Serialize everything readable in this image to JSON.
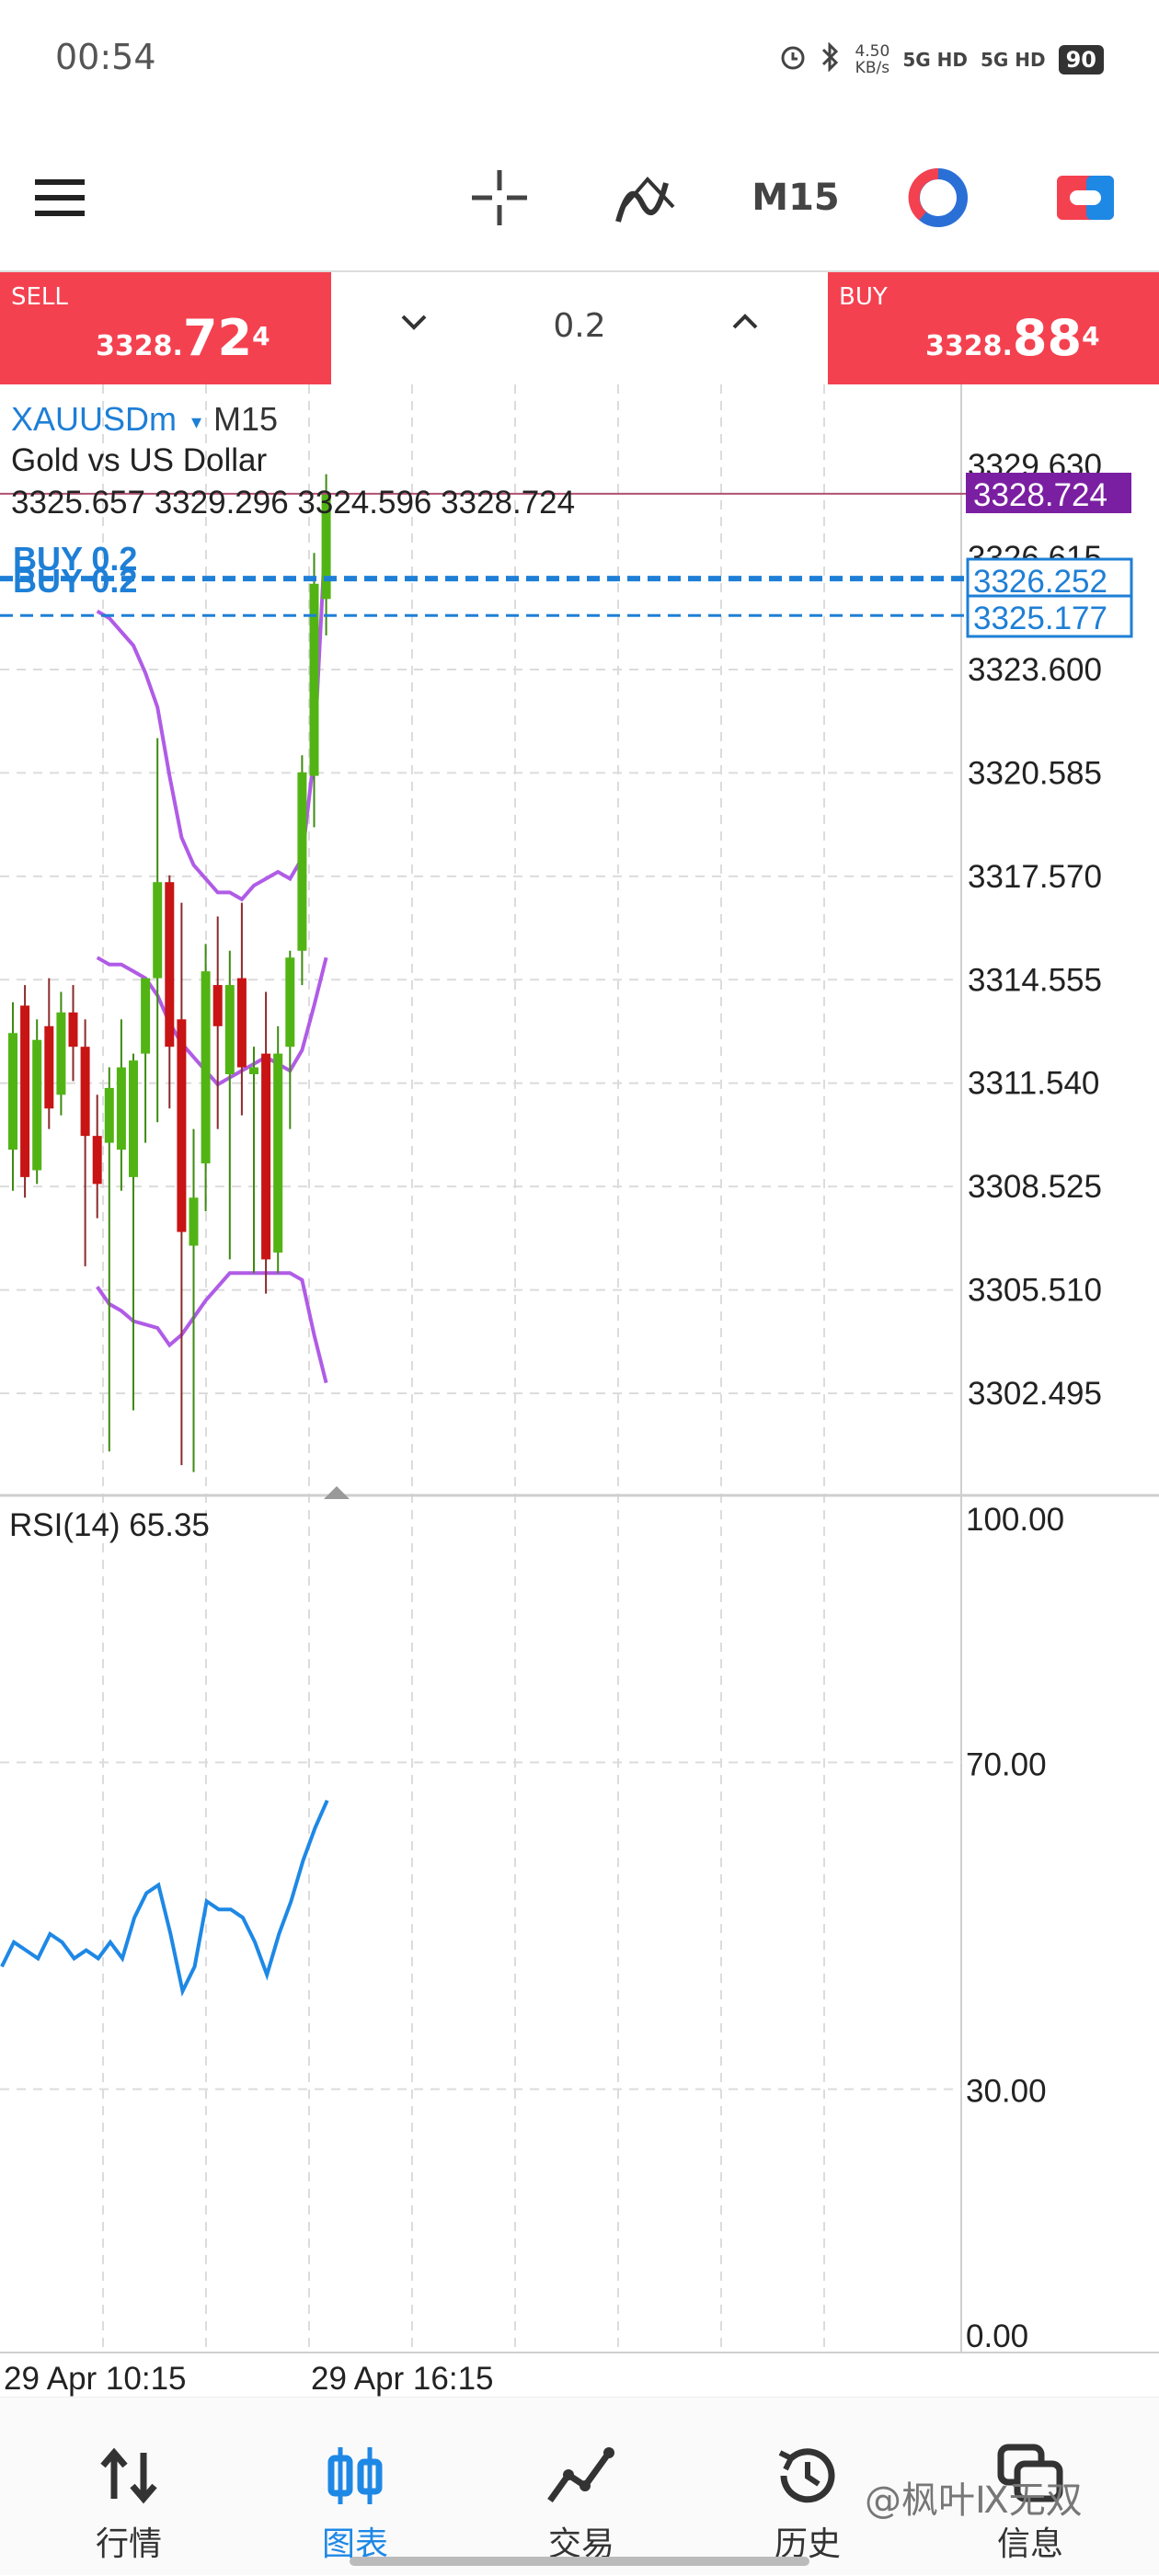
{
  "status_bar": {
    "time": "00:54",
    "net_speed_value": "4.50",
    "net_speed_unit": "KB/s",
    "signal_1": "5G HD",
    "signal_2": "5G HD",
    "battery": "90"
  },
  "toolbar": {
    "timeframe": "M15",
    "icons": [
      "menu-icon",
      "crosshair-icon",
      "indicators-icon",
      "timeframe",
      "color-theme-icon",
      "trade-toggle-icon"
    ]
  },
  "trade_bar": {
    "sell_label": "SELL",
    "sell_price_main": "3328.",
    "sell_price_big": "72",
    "sell_price_sup": "4",
    "buy_label": "BUY",
    "buy_price_main": "3328.",
    "buy_price_big": "88",
    "buy_price_sup": "4",
    "volume": "0.2",
    "colors": {
      "trade_button": "#f44150"
    }
  },
  "chart_header": {
    "symbol": "XAUUSDm",
    "dropdown_glyph": "▾",
    "timeframe": "M15",
    "description": "Gold vs US Dollar",
    "ohlc": "3325.657 3329.296 3324.596 3328.724"
  },
  "orders": {
    "label_1": "BUY 0.2",
    "label_2": "BUY 0.2",
    "price_1": "3326.252",
    "price_2": "3325.177",
    "current_price": "3328.724",
    "partial_top_label": "3329.630",
    "partial_hidden_label": "3326.615"
  },
  "price_axis": [
    "3323.600",
    "3320.585",
    "3317.570",
    "3314.555",
    "3311.540",
    "3308.525",
    "3305.510",
    "3302.495"
  ],
  "rsi": {
    "label": "RSI(14) 65.35",
    "levels": [
      "100.00",
      "70.00",
      "30.00",
      "0.00"
    ]
  },
  "time_axis": [
    "29 Apr 10:15",
    "29 Apr 16:15"
  ],
  "bottom_nav": {
    "items": [
      {
        "label": "行情",
        "icon": "quotes-icon"
      },
      {
        "label": "图表",
        "icon": "chart-icon"
      },
      {
        "label": "交易",
        "icon": "trade-icon"
      },
      {
        "label": "历史",
        "icon": "history-icon"
      },
      {
        "label": "信息",
        "icon": "messages-icon"
      }
    ],
    "active": "图表"
  },
  "watermark": "@枫叶Ⅸ无双",
  "chart_data": {
    "type": "candlestick",
    "symbol": "XAUUSDm",
    "timeframe": "M15",
    "y_axis_ticks": [
      3323.6,
      3320.585,
      3317.57,
      3314.555,
      3311.54,
      3308.525,
      3305.51,
      3302.495
    ],
    "candles": [
      {
        "o": 3309.6,
        "h": 3313.9,
        "l": 3308.4,
        "c": 3313.0
      },
      {
        "o": 3313.8,
        "h": 3314.4,
        "l": 3308.2,
        "c": 3308.8
      },
      {
        "o": 3309.0,
        "h": 3313.4,
        "l": 3308.6,
        "c": 3312.8
      },
      {
        "o": 3313.2,
        "h": 3314.6,
        "l": 3310.2,
        "c": 3310.8
      },
      {
        "o": 3311.2,
        "h": 3314.2,
        "l": 3310.6,
        "c": 3313.6
      },
      {
        "o": 3313.6,
        "h": 3314.4,
        "l": 3311.6,
        "c": 3312.6
      },
      {
        "o": 3312.6,
        "h": 3313.4,
        "l": 3306.2,
        "c": 3310.0
      },
      {
        "o": 3310.0,
        "h": 3311.2,
        "l": 3307.6,
        "c": 3308.6
      },
      {
        "o": 3309.8,
        "h": 3312.0,
        "l": 3300.8,
        "c": 3311.4
      },
      {
        "o": 3309.6,
        "h": 3313.4,
        "l": 3308.4,
        "c": 3312.0
      },
      {
        "o": 3308.8,
        "h": 3312.4,
        "l": 3302.0,
        "c": 3312.2
      },
      {
        "o": 3312.4,
        "h": 3314.6,
        "l": 3309.8,
        "c": 3314.6
      },
      {
        "o": 3314.6,
        "h": 3321.6,
        "l": 3310.4,
        "c": 3317.4
      },
      {
        "o": 3317.4,
        "h": 3317.6,
        "l": 3310.8,
        "c": 3312.6
      },
      {
        "o": 3313.4,
        "h": 3316.8,
        "l": 3300.4,
        "c": 3307.2
      },
      {
        "o": 3306.8,
        "h": 3310.2,
        "l": 3300.2,
        "c": 3308.2
      },
      {
        "o": 3309.2,
        "h": 3315.6,
        "l": 3307.8,
        "c": 3314.8
      },
      {
        "o": 3314.4,
        "h": 3316.4,
        "l": 3310.2,
        "c": 3313.2
      },
      {
        "o": 3311.8,
        "h": 3315.4,
        "l": 3306.4,
        "c": 3314.4
      },
      {
        "o": 3314.6,
        "h": 3316.8,
        "l": 3310.6,
        "c": 3312.0
      },
      {
        "o": 3311.8,
        "h": 3312.6,
        "l": 3306.0,
        "c": 3312.0
      },
      {
        "o": 3312.4,
        "h": 3314.2,
        "l": 3305.4,
        "c": 3306.4
      },
      {
        "o": 3306.6,
        "h": 3313.2,
        "l": 3306.0,
        "c": 3312.4
      },
      {
        "o": 3312.6,
        "h": 3315.4,
        "l": 3310.2,
        "c": 3315.2
      },
      {
        "o": 3315.4,
        "h": 3321.1,
        "l": 3314.4,
        "c": 3320.6
      },
      {
        "o": 3320.5,
        "h": 3327.0,
        "l": 3319.0,
        "c": 3326.1
      },
      {
        "o": 3325.657,
        "h": 3329.296,
        "l": 3324.596,
        "c": 3328.724
      }
    ],
    "bollinger_upper": [
      3325.3,
      3325.1,
      3324.7,
      3324.3,
      3323.5,
      3322.5,
      3320.5,
      3318.7,
      3317.9,
      3317.5,
      3317.1,
      3317.1,
      3316.9,
      3317.3,
      3317.5,
      3317.7,
      3317.5,
      3318.1,
      3321.1,
      3328.0
    ],
    "bollinger_middle": [
      3315.2,
      3315.0,
      3315.0,
      3314.8,
      3314.6,
      3314.1,
      3313.3,
      3312.7,
      3312.3,
      3311.9,
      3311.5,
      3311.7,
      3311.9,
      3312.1,
      3312.3,
      3312.1,
      3311.9,
      3312.5,
      3313.8,
      3315.2
    ],
    "bollinger_lower": [
      3305.6,
      3305.1,
      3304.9,
      3304.6,
      3304.5,
      3304.4,
      3303.9,
      3304.2,
      3304.7,
      3305.2,
      3305.6,
      3306.0,
      3306.0,
      3306.0,
      3306.0,
      3306.0,
      3306.0,
      3305.8,
      3304.2,
      3302.8
    ],
    "order_lines": [
      3326.252,
      3325.177
    ],
    "current_price": 3328.724,
    "rsi_values": [
      45,
      48,
      47,
      46,
      49,
      48,
      46,
      47,
      46,
      48,
      46,
      51,
      54,
      55,
      49,
      42,
      45,
      53,
      52,
      52,
      51,
      48,
      44,
      49,
      53,
      58,
      62,
      65.35
    ],
    "rsi_levels": [
      100,
      70,
      30,
      0
    ],
    "x_labels": [
      "29 Apr 10:15",
      "29 Apr 16:15"
    ],
    "colors": {
      "bull": "#52b414",
      "bear": "#c81414",
      "bands": "#b05ce6",
      "rsi": "#1e88e5",
      "order_line": "#1e7fd6",
      "price_badge": "#7b1fa2"
    }
  }
}
